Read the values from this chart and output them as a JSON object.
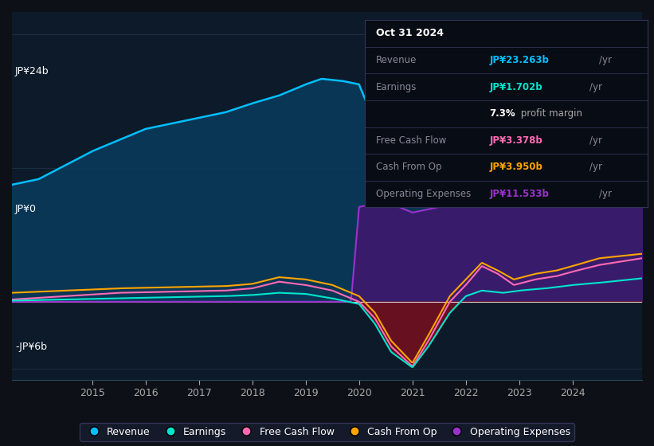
{
  "bg_color": "#0d1117",
  "plot_bg_color": "#0d1a2a",
  "revenue_color": "#00bfff",
  "revenue_fill_color": "#0a3a5a",
  "earnings_color": "#00e5cc",
  "fcf_color": "#ff69b4",
  "cashfromop_color": "#ffa500",
  "opex_color": "#9932cc",
  "opex_fill_color": "#3d1a6e",
  "neg_fill_color": "#6b1020",
  "ytick_labels": [
    "JP¥24b",
    "JP¥0",
    "-JP¥6b"
  ],
  "legend_items": [
    {
      "label": "Revenue",
      "color": "#00bfff"
    },
    {
      "label": "Earnings",
      "color": "#00e5cc"
    },
    {
      "label": "Free Cash Flow",
      "color": "#ff69b4"
    },
    {
      "label": "Cash From Op",
      "color": "#ffa500"
    },
    {
      "label": "Operating Expenses",
      "color": "#9932cc"
    }
  ]
}
